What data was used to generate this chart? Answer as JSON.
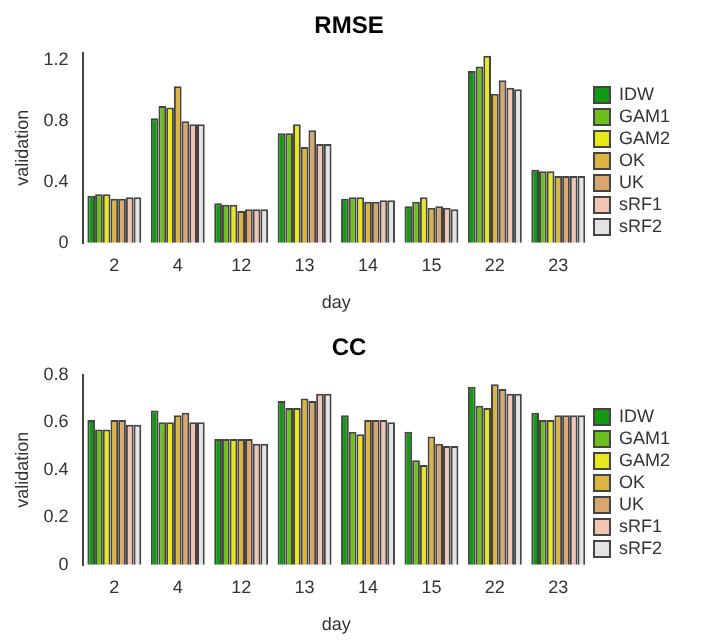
{
  "chart_data": [
    {
      "type": "bar",
      "title": "RMSE",
      "xlabel": "day",
      "ylabel": "validation",
      "categories": [
        "2",
        "4",
        "12",
        "13",
        "14",
        "15",
        "22",
        "23"
      ],
      "ylim": [
        0,
        1.25
      ],
      "yticks": [
        0,
        {
          "value": 0.4,
          "label": "0.4"
        },
        {
          "value": 0.8,
          "label": "0.8"
        },
        {
          "value": 1.2,
          "label": "1.2"
        }
      ],
      "grid": false,
      "legend": "right",
      "series": [
        {
          "name": "IDW",
          "color": "#119a11",
          "values": [
            0.31,
            0.82,
            0.26,
            0.72,
            0.29,
            0.24,
            1.13,
            0.48
          ]
        },
        {
          "name": "GAM1",
          "color": "#6cbf1c",
          "values": [
            0.32,
            0.9,
            0.25,
            0.72,
            0.3,
            0.27,
            1.16,
            0.47
          ]
        },
        {
          "name": "GAM2",
          "color": "#e8e81a",
          "values": [
            0.32,
            0.89,
            0.25,
            0.78,
            0.3,
            0.3,
            1.23,
            0.47
          ]
        },
        {
          "name": "OK",
          "color": "#dcb440",
          "values": [
            0.29,
            1.03,
            0.21,
            0.63,
            0.27,
            0.23,
            0.98,
            0.44
          ]
        },
        {
          "name": "UK",
          "color": "#d9a66b",
          "values": [
            0.29,
            0.8,
            0.22,
            0.74,
            0.27,
            0.24,
            1.07,
            0.44
          ]
        },
        {
          "name": "sRF1",
          "color": "#f2c4b4",
          "values": [
            0.3,
            0.78,
            0.22,
            0.65,
            0.28,
            0.23,
            1.02,
            0.44
          ]
        },
        {
          "name": "sRF2",
          "color": "#e4e4e4",
          "values": [
            0.3,
            0.78,
            0.22,
            0.65,
            0.28,
            0.22,
            1.01,
            0.44
          ]
        }
      ]
    },
    {
      "type": "bar",
      "title": "CC",
      "xlabel": "day",
      "ylabel": "validation",
      "categories": [
        "2",
        "4",
        "12",
        "13",
        "14",
        "15",
        "22",
        "23"
      ],
      "ylim": [
        0,
        0.8
      ],
      "yticks": [
        0,
        {
          "value": 0.2,
          "label": "0.2"
        },
        {
          "value": 0.4,
          "label": "0.4"
        },
        {
          "value": 0.6,
          "label": "0.6"
        },
        {
          "value": 0.8,
          "label": "0.8"
        }
      ],
      "grid": false,
      "legend": "right",
      "series": [
        {
          "name": "IDW",
          "color": "#119a11",
          "values": [
            0.61,
            0.65,
            0.53,
            0.69,
            0.63,
            0.56,
            0.75,
            0.64
          ]
        },
        {
          "name": "GAM1",
          "color": "#6cbf1c",
          "values": [
            0.57,
            0.6,
            0.53,
            0.66,
            0.56,
            0.44,
            0.67,
            0.61
          ]
        },
        {
          "name": "GAM2",
          "color": "#e8e81a",
          "values": [
            0.57,
            0.6,
            0.53,
            0.66,
            0.55,
            0.42,
            0.66,
            0.61
          ]
        },
        {
          "name": "OK",
          "color": "#dcb440",
          "values": [
            0.61,
            0.63,
            0.53,
            0.7,
            0.61,
            0.54,
            0.76,
            0.63
          ]
        },
        {
          "name": "UK",
          "color": "#d9a66b",
          "values": [
            0.61,
            0.64,
            0.53,
            0.69,
            0.61,
            0.51,
            0.74,
            0.63
          ]
        },
        {
          "name": "sRF1",
          "color": "#f2c4b4",
          "values": [
            0.59,
            0.6,
            0.51,
            0.72,
            0.61,
            0.5,
            0.72,
            0.63
          ]
        },
        {
          "name": "sRF2",
          "color": "#e4e4e4",
          "values": [
            0.59,
            0.6,
            0.51,
            0.72,
            0.6,
            0.5,
            0.72,
            0.63
          ]
        }
      ]
    }
  ]
}
